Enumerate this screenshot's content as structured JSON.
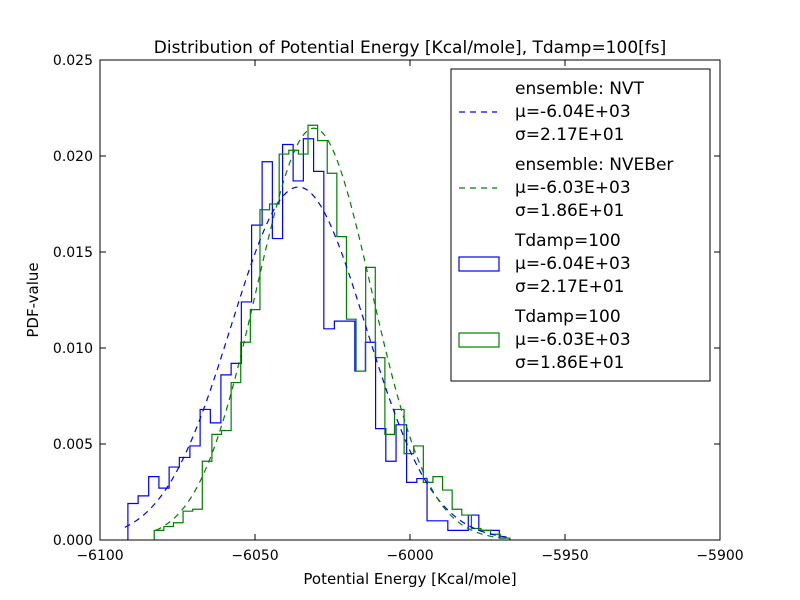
{
  "chart_data": {
    "type": "histogram",
    "title": "Distribution of Potential Energy [Kcal/mole], Tdamp=100[fs]",
    "xlabel": "Potential Energy [Kcal/mole]",
    "ylabel": "PDF-value",
    "xlim": [
      -6100,
      -5900
    ],
    "ylim": [
      0,
      0.025
    ],
    "xticks": [
      -6100,
      -6050,
      -6000,
      -5950,
      -5900
    ],
    "xtick_labels": [
      "−6100",
      "−6050",
      "−6000",
      "−5950",
      "−5900"
    ],
    "yticks": [
      0,
      0.005,
      0.01,
      0.015,
      0.02,
      0.025
    ],
    "ytick_labels": [
      "0.000",
      "0.005",
      "0.010",
      "0.015",
      "0.020",
      "0.025"
    ],
    "grid": false,
    "legend_position": "top-right",
    "colors": {
      "nvt": "#0000ff",
      "nveber": "#008000"
    },
    "fits": [
      {
        "color": "#0000ff",
        "label_lines": [
          "ensemble: NVT",
          "μ=-6.04E+03",
          "σ=2.17E+01"
        ],
        "mu": -6036,
        "sigma": 21.7,
        "x_range": [
          -6092,
          -5968
        ]
      },
      {
        "color": "#008000",
        "label_lines": [
          "ensemble: NVEBer",
          "μ=-6.03E+03",
          "σ=1.86E+01"
        ],
        "mu": -6031,
        "sigma": 18.6,
        "x_range": [
          -6082,
          -5968
        ]
      }
    ],
    "histograms": [
      {
        "color": "#0000ff",
        "label_lines": [
          "Tdamp=100",
          "μ=-6.04E+03",
          "σ=2.17E+01"
        ],
        "edges": [
          -6091.0,
          -6087.7,
          -6084.3,
          -6081.0,
          -6077.7,
          -6074.4,
          -6071.0,
          -6067.7,
          -6064.4,
          -6061.0,
          -6057.7,
          -6054.4,
          -6051.1,
          -6047.7,
          -6044.4,
          -6041.1,
          -6037.7,
          -6034.4,
          -6031.1,
          -6027.8,
          -6024.4,
          -6021.1,
          -6017.8,
          -6014.4,
          -6011.1,
          -6007.8,
          -6004.5,
          -6001.1,
          -5997.8,
          -5994.5,
          -5991.1,
          -5987.8,
          -5984.5,
          -5981.2,
          -5977.8,
          -5974.5,
          -5971.2,
          -5967.8
        ],
        "values": [
          0.0019,
          0.0023,
          0.0033,
          0.0027,
          0.0038,
          0.0043,
          0.0049,
          0.0068,
          0.0061,
          0.0086,
          0.0092,
          0.0124,
          0.0164,
          0.0197,
          0.0157,
          0.0206,
          0.0187,
          0.0209,
          0.0192,
          0.011,
          0.0114,
          0.0114,
          0.0088,
          0.0103,
          0.0058,
          0.0041,
          0.006,
          0.003,
          0.0032,
          0.001,
          0.001,
          0.0005,
          0.0005,
          0.0013,
          0.0005,
          0.0005,
          0.0001
        ]
      },
      {
        "color": "#008000",
        "label_lines": [
          "Tdamp=100",
          "μ=-6.03E+03",
          "σ=1.86E+01"
        ],
        "edges": [
          -6082.5,
          -6079.4,
          -6076.3,
          -6073.2,
          -6070.1,
          -6067.0,
          -6063.9,
          -6060.8,
          -6057.7,
          -6054.6,
          -6051.5,
          -6048.4,
          -6045.3,
          -6042.2,
          -6039.1,
          -6036.0,
          -6032.9,
          -6029.8,
          -6026.7,
          -6023.6,
          -6020.5,
          -6017.4,
          -6014.3,
          -6011.2,
          -6008.1,
          -6005.0,
          -6001.9,
          -5998.8,
          -5995.7,
          -5992.6,
          -5989.5,
          -5986.4,
          -5983.3,
          -5980.2,
          -5977.1,
          -5974.0,
          -5970.9,
          -5967.8
        ],
        "values": [
          0.0005,
          0.0007,
          0.0009,
          0.0015,
          0.0016,
          0.0041,
          0.0055,
          0.0057,
          0.0082,
          0.0103,
          0.012,
          0.0172,
          0.0175,
          0.0201,
          0.0203,
          0.0201,
          0.0216,
          0.0208,
          0.0191,
          0.0158,
          0.0115,
          0.0088,
          0.0142,
          0.0095,
          0.0055,
          0.0068,
          0.0045,
          0.0049,
          0.003,
          0.0033,
          0.0026,
          0.0016,
          0.0013,
          0.0006,
          0.0005,
          0.0003,
          0.0001
        ]
      }
    ]
  }
}
